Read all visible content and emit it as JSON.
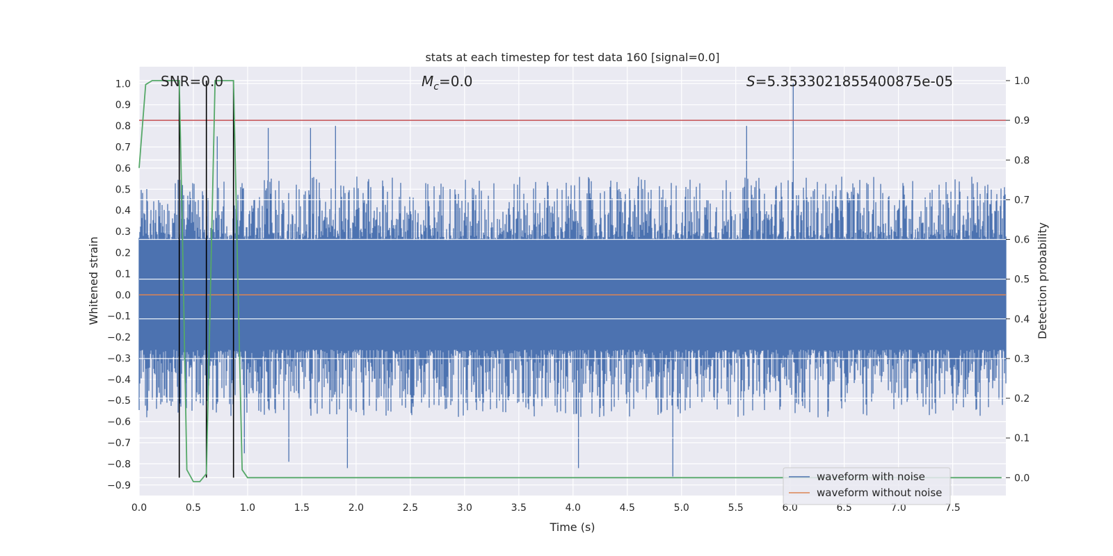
{
  "chart_data": {
    "type": "line",
    "title": "stats at each timestep for test data 160 [signal=0.0]",
    "xlabel": "Time (s)",
    "ylabel_left": "Whitened strain",
    "ylabel_right": "Detection probability",
    "xlim": [
      0.0,
      7.99
    ],
    "ylim_left": [
      -0.95,
      1.08
    ],
    "ylim_right": [
      -0.045,
      1.035
    ],
    "x_ticks": [
      "0.0",
      "0.5",
      "1.0",
      "1.5",
      "2.0",
      "2.5",
      "3.0",
      "3.5",
      "4.0",
      "4.5",
      "5.0",
      "5.5",
      "6.0",
      "6.5",
      "7.0",
      "7.5"
    ],
    "y_ticks_left": [
      "-0.9",
      "-0.8",
      "-0.7",
      "-0.6",
      "-0.5",
      "-0.4",
      "-0.3",
      "-0.2",
      "-0.1",
      "0.0",
      "0.1",
      "0.2",
      "0.3",
      "0.4",
      "0.5",
      "0.6",
      "0.7",
      "0.8",
      "0.9",
      "1.0"
    ],
    "y_ticks_right": [
      "0.0",
      "0.1",
      "0.2",
      "0.3",
      "0.4",
      "0.5",
      "0.6",
      "0.7",
      "0.8",
      "0.9",
      "1.0"
    ],
    "grid": true,
    "legend_position": "lower right",
    "annotations": {
      "snr": "SNR=0.0",
      "mc_symbol": "M",
      "mc_sub": "c",
      "mc_value": "=0.0",
      "s_symbol": "S",
      "s_value": "=5.3533021855400875e-05"
    },
    "series": [
      {
        "name": "waveform with noise",
        "axis": "left",
        "color": "#4c72b0",
        "envelope_note": "dense noise, typical amplitude about ±0.3 to ±0.5",
        "peaks": [
          {
            "x": 0.4,
            "y": 0.52
          },
          {
            "x": 0.62,
            "y": 0.78
          },
          {
            "x": 0.72,
            "y": 0.75
          },
          {
            "x": 1.19,
            "y": 0.79
          },
          {
            "x": 1.58,
            "y": 0.79
          },
          {
            "x": 1.81,
            "y": 0.8
          },
          {
            "x": 5.6,
            "y": 0.8
          },
          {
            "x": 6.03,
            "y": 1.0
          }
        ],
        "troughs": [
          {
            "x": 0.37,
            "y": -0.66
          },
          {
            "x": 0.97,
            "y": -0.75
          },
          {
            "x": 1.38,
            "y": -0.79
          },
          {
            "x": 1.92,
            "y": -0.82
          },
          {
            "x": 4.05,
            "y": -0.82
          },
          {
            "x": 4.92,
            "y": -0.86
          }
        ]
      },
      {
        "name": "waveform without noise",
        "axis": "left",
        "color": "#dd8452",
        "x": [
          0.0,
          7.99
        ],
        "y": [
          0.0,
          0.0
        ]
      },
      {
        "name": "detection probability",
        "axis": "right",
        "color": "#55a868",
        "x": [
          0.0,
          0.06,
          0.12,
          0.37,
          0.4,
          0.44,
          0.5,
          0.56,
          0.62,
          0.66,
          0.7,
          0.87,
          0.91,
          0.95,
          1.0,
          7.95
        ],
        "y": [
          0.78,
          0.99,
          1.0,
          1.0,
          0.6,
          0.02,
          -0.01,
          -0.01,
          0.01,
          0.5,
          1.0,
          1.0,
          0.5,
          0.02,
          0.0,
          0.0
        ]
      }
    ],
    "threshold_right": {
      "y": 0.9,
      "color": "#c44e52"
    },
    "markers_x": [
      0.37,
      0.62,
      0.87
    ]
  }
}
